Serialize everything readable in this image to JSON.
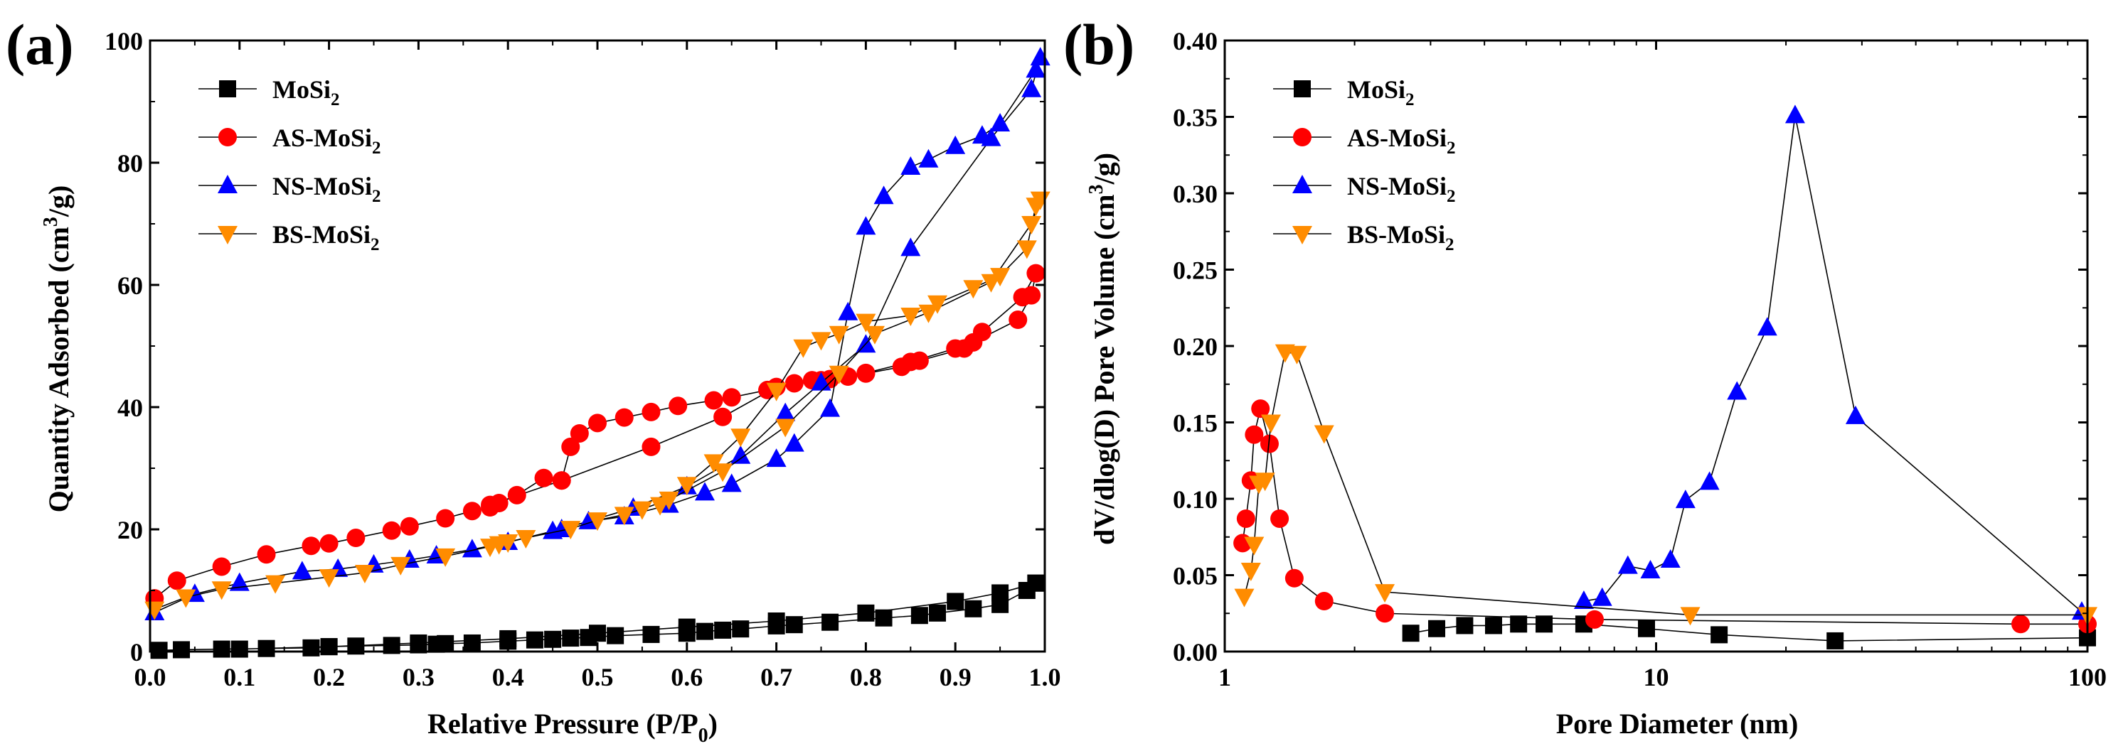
{
  "colors": {
    "MoSi2": "#000000",
    "AS-MoSi2": "#ff0000",
    "NS-MoSi2": "#0000ff",
    "BS-MoSi2": "#ff8c00"
  },
  "chart_data": [
    {
      "type": "scatter",
      "panel_label": "(a)",
      "title": "",
      "xlabel": "Relative Pressure (P/P0)",
      "xlabel_main": "Relative Pressure (P/P",
      "xlabel_sub": "0",
      "xlabel_end": ")",
      "ylabel": "Quantity Adsorbed (cm3/g)",
      "ylabel_main": "Quantity Adsorbed (cm",
      "ylabel_sup": "3",
      "ylabel_end": "/g)",
      "xlim": [
        0.0,
        1.0
      ],
      "ylim": [
        0,
        100
      ],
      "x_ticks": [
        0.0,
        0.1,
        0.2,
        0.3,
        0.4,
        0.5,
        0.6,
        0.7,
        0.8,
        0.9,
        1.0
      ],
      "x_tick_labels": [
        "0.0",
        "0.1",
        "0.2",
        "0.3",
        "0.4",
        "0.5",
        "0.6",
        "0.7",
        "0.8",
        "0.9",
        "1.0"
      ],
      "y_ticks": [
        0,
        20,
        40,
        60,
        80,
        100
      ],
      "y_tick_labels": [
        "0",
        "20",
        "40",
        "60",
        "80",
        "100"
      ],
      "legend_position": "top-left",
      "series": [
        {
          "name": "MoSi2",
          "name_main": "MoSi",
          "name_sub": "2",
          "marker": "square",
          "x": [
            0.01,
            0.035,
            0.08,
            0.13,
            0.18,
            0.2,
            0.23,
            0.27,
            0.3,
            0.32,
            0.33,
            0.36,
            0.4,
            0.43,
            0.45,
            0.47,
            0.49,
            0.52,
            0.56,
            0.6,
            0.62,
            0.64,
            0.66,
            0.7,
            0.72,
            0.76,
            0.82,
            0.86,
            0.88,
            0.92,
            0.95,
            0.98,
            0.99,
            0.99,
            0.95,
            0.9,
            0.8,
            0.7,
            0.6,
            0.5,
            0.4,
            0.3,
            0.2,
            0.1
          ],
          "y": [
            0.2,
            0.3,
            0.4,
            0.5,
            0.6,
            0.8,
            0.9,
            1.0,
            1.1,
            1.2,
            1.3,
            1.4,
            1.7,
            1.9,
            2.0,
            2.2,
            2.3,
            2.6,
            2.8,
            3.0,
            3.3,
            3.5,
            3.7,
            4.2,
            4.4,
            4.8,
            5.5,
            5.9,
            6.3,
            7.0,
            7.7,
            10.0,
            11.2,
            11.2,
            9.6,
            8.2,
            6.3,
            5.0,
            4.0,
            3.0,
            2.1,
            1.4,
            0.8,
            0.4
          ]
        },
        {
          "name": "AS-MoSi2",
          "name_main": "AS-MoSi",
          "name_sub": "2",
          "marker": "circle",
          "x": [
            0.005,
            0.03,
            0.08,
            0.13,
            0.18,
            0.2,
            0.23,
            0.27,
            0.29,
            0.33,
            0.36,
            0.38,
            0.39,
            0.41,
            0.44,
            0.46,
            0.47,
            0.48,
            0.5,
            0.53,
            0.56,
            0.59,
            0.63,
            0.65,
            0.69,
            0.72,
            0.74,
            0.76,
            0.78,
            0.8,
            0.84,
            0.86,
            0.91,
            0.92,
            0.97,
            0.985,
            0.99,
            0.975,
            0.93,
            0.9,
            0.85,
            0.8,
            0.75,
            0.7,
            0.64,
            0.56,
            0.46,
            0.38
          ],
          "y": [
            8.7,
            11.6,
            13.9,
            15.9,
            17.3,
            17.7,
            18.6,
            19.8,
            20.5,
            21.8,
            23.0,
            23.6,
            24.3,
            25.6,
            28.4,
            28.0,
            33.5,
            35.7,
            37.4,
            38.3,
            39.2,
            40.2,
            41.1,
            41.6,
            42.8,
            43.9,
            44.4,
            44.6,
            45.0,
            45.5,
            46.6,
            47.6,
            49.6,
            50.6,
            54.3,
            58.3,
            61.9,
            58.0,
            52.3,
            49.6,
            47.4,
            45.6,
            44.4,
            43.3,
            38.4,
            33.5,
            28.0,
            24.0
          ]
        },
        {
          "name": "NS-MoSi2",
          "name_main": "NS-MoSi",
          "name_sub": "2",
          "marker": "triangle-up",
          "x": [
            0.005,
            0.05,
            0.1,
            0.17,
            0.21,
            0.25,
            0.29,
            0.32,
            0.36,
            0.4,
            0.45,
            0.49,
            0.53,
            0.58,
            0.62,
            0.65,
            0.7,
            0.72,
            0.76,
            0.78,
            0.8,
            0.82,
            0.85,
            0.87,
            0.9,
            0.93,
            0.95,
            0.99,
            0.995,
            0.985,
            0.94,
            0.85,
            0.8,
            0.75,
            0.71,
            0.66,
            0.6,
            0.54,
            0.46
          ],
          "y": [
            6.4,
            9.4,
            11.2,
            13.1,
            13.5,
            14.2,
            15.0,
            15.7,
            16.7,
            17.9,
            19.7,
            21.3,
            22.1,
            24.0,
            26.0,
            27.4,
            31.5,
            34.0,
            39.7,
            55.5,
            69.5,
            74.5,
            79.3,
            80.5,
            82.7,
            84.4,
            86.4,
            95.2,
            97.2,
            92.0,
            84.0,
            66.0,
            50.2,
            44.0,
            39.0,
            32.0,
            27.0,
            23.5,
            20.0
          ]
        },
        {
          "name": "BS-MoSi2",
          "name_main": "BS-MoSi",
          "name_sub": "2",
          "marker": "triangle-down",
          "x": [
            0.005,
            0.04,
            0.08,
            0.14,
            0.2,
            0.24,
            0.28,
            0.33,
            0.38,
            0.39,
            0.4,
            0.42,
            0.47,
            0.5,
            0.53,
            0.55,
            0.58,
            0.6,
            0.63,
            0.66,
            0.7,
            0.73,
            0.75,
            0.77,
            0.8,
            0.85,
            0.88,
            0.92,
            0.95,
            0.98,
            0.99,
            0.995,
            0.985,
            0.94,
            0.87,
            0.81,
            0.77,
            0.71,
            0.64,
            0.57
          ],
          "y": [
            6.9,
            8.9,
            10.2,
            11.2,
            12.2,
            12.9,
            14.2,
            15.6,
            17.2,
            17.6,
            17.9,
            18.6,
            20.1,
            21.5,
            22.4,
            23.3,
            24.9,
            27.3,
            31.0,
            35.2,
            42.7,
            49.8,
            51.0,
            52.0,
            54.0,
            55.0,
            57.0,
            59.5,
            61.5,
            66.0,
            73.0,
            74.0,
            70.0,
            60.5,
            55.5,
            52.0,
            45.5,
            36.8,
            29.5,
            24.0
          ]
        }
      ]
    },
    {
      "type": "line",
      "panel_label": "(b)",
      "title": "",
      "xlabel": "Pore Diameter (nm)",
      "ylabel": "dV/dlog(D) Pore Volume (cm3/g)",
      "ylabel_main": "dV/dlog(D) Pore Volume (cm",
      "ylabel_sup": "3",
      "ylabel_end": "/g)",
      "xscale": "log",
      "xlim": [
        1,
        100
      ],
      "ylim": [
        0.0,
        0.4
      ],
      "x_ticks": [
        1,
        10,
        100
      ],
      "x_tick_labels": [
        "1",
        "10",
        "100"
      ],
      "y_ticks": [
        0.0,
        0.05,
        0.1,
        0.15,
        0.2,
        0.25,
        0.3,
        0.35,
        0.4
      ],
      "y_tick_labels": [
        "0.00",
        "0.05",
        "0.10",
        "0.15",
        "0.20",
        "0.25",
        "0.30",
        "0.35",
        "0.40"
      ],
      "legend_position": "top-left",
      "series": [
        {
          "name": "MoSi2",
          "name_main": "MoSi",
          "name_sub": "2",
          "marker": "square",
          "x": [
            2.7,
            3.1,
            3.6,
            4.2,
            4.8,
            5.5,
            6.8,
            9.5,
            14.0,
            26.0,
            100.0
          ],
          "y": [
            0.012,
            0.015,
            0.017,
            0.017,
            0.018,
            0.018,
            0.018,
            0.015,
            0.011,
            0.007,
            0.009
          ]
        },
        {
          "name": "AS-MoSi2",
          "name_main": "AS-MoSi",
          "name_sub": "2",
          "marker": "circle",
          "x": [
            1.1,
            1.12,
            1.15,
            1.17,
            1.21,
            1.27,
            1.34,
            1.45,
            1.7,
            2.35,
            7.2,
            70.0,
            100.0
          ],
          "y": [
            0.071,
            0.087,
            0.112,
            0.142,
            0.159,
            0.136,
            0.087,
            0.048,
            0.033,
            0.025,
            0.021,
            0.018,
            0.018
          ]
        },
        {
          "name": "NS-MoSi2",
          "name_main": "NS-MoSi",
          "name_sub": "2",
          "marker": "triangle-up",
          "x": [
            6.8,
            7.5,
            8.6,
            9.7,
            10.8,
            11.7,
            13.3,
            15.4,
            18.1,
            21.0,
            29.0,
            97.0
          ],
          "y": [
            0.033,
            0.035,
            0.056,
            0.053,
            0.06,
            0.099,
            0.111,
            0.17,
            0.212,
            0.351,
            0.154,
            0.026
          ]
        },
        {
          "name": "BS-MoSi2",
          "name_main": "BS-MoSi",
          "name_sub": "2",
          "marker": "triangle-down",
          "x": [
            1.11,
            1.15,
            1.17,
            1.2,
            1.24,
            1.28,
            1.38,
            1.47,
            1.7,
            2.35,
            12.0,
            100.0
          ],
          "y": [
            0.036,
            0.053,
            0.07,
            0.11,
            0.112,
            0.15,
            0.196,
            0.195,
            0.143,
            0.039,
            0.024,
            0.024
          ]
        }
      ]
    }
  ]
}
